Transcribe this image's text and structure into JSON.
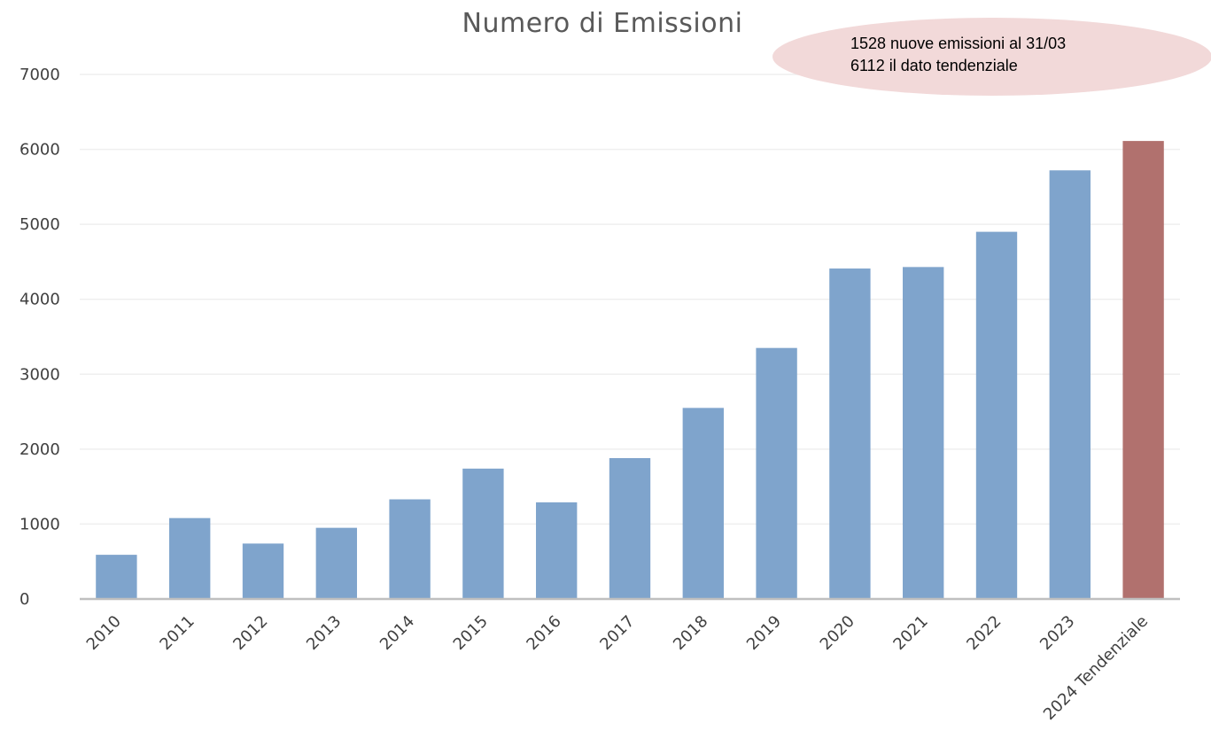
{
  "chart_data": {
    "type": "bar",
    "title": "Numero di Emissioni",
    "xlabel": "",
    "ylabel": "",
    "categories": [
      "2010",
      "2011",
      "2012",
      "2013",
      "2014",
      "2015",
      "2016",
      "2017",
      "2018",
      "2019",
      "2020",
      "2021",
      "2022",
      "2023",
      "2024 Tendenziale"
    ],
    "values": [
      590,
      1080,
      740,
      950,
      1330,
      1740,
      1290,
      1880,
      2550,
      3350,
      4410,
      4430,
      4900,
      5720,
      6112
    ],
    "ylim": [
      0,
      7000
    ],
    "y_ticks": [
      "0",
      "1000",
      "2000",
      "3000",
      "4000",
      "5000",
      "6000",
      "7000"
    ],
    "grid": true,
    "legend": "none",
    "colors": {
      "bar": "#7fa4cc",
      "highlight_bar": "#b1716e",
      "highlight_index": 14,
      "gridline": "#efefef",
      "axis": "#bfbfbf",
      "callout_fill": "#f2d9d9"
    },
    "annotation": {
      "lines": [
        "1528 nuove emissioni al 31/03",
        "6112 il dato tendenziale"
      ]
    }
  }
}
